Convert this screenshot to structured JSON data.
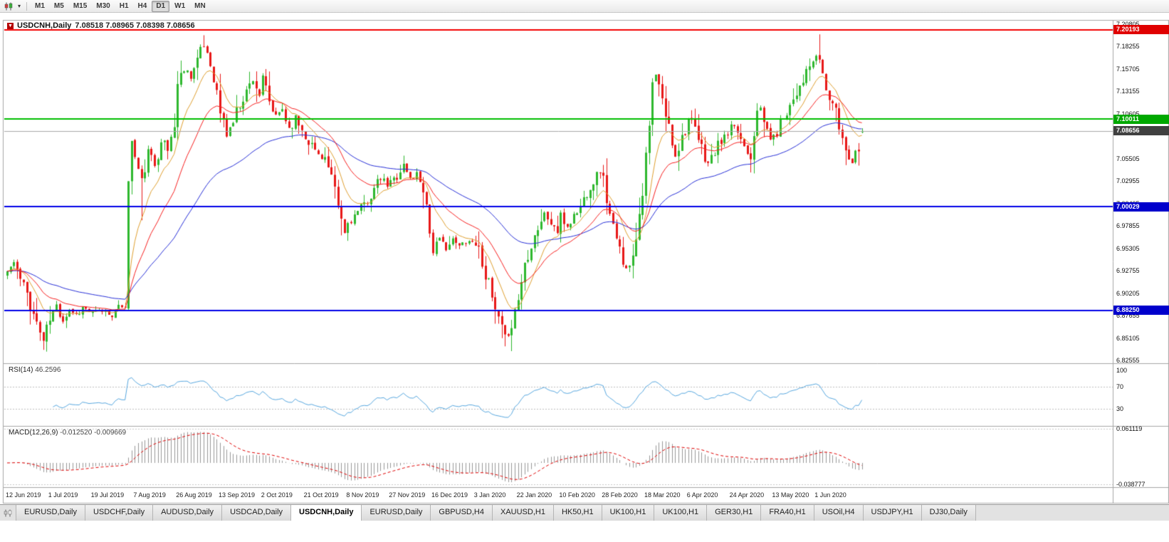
{
  "toolbar": {
    "buttons": [
      {
        "label": "M1",
        "active": false
      },
      {
        "label": "M5",
        "active": false
      },
      {
        "label": "M15",
        "active": false
      },
      {
        "label": "M30",
        "active": false
      },
      {
        "label": "H1",
        "active": false
      },
      {
        "label": "H4",
        "active": false
      },
      {
        "label": "D1",
        "active": true
      },
      {
        "label": "W1",
        "active": false
      },
      {
        "label": "MN",
        "active": false
      }
    ]
  },
  "chart": {
    "symbol": "USDCNH,Daily",
    "ohlc": "7.08518 7.08965 7.08398 7.08656",
    "current_price": {
      "label": "7.08656",
      "value": 7.08656,
      "line_color": "#a8a8a8",
      "badge_bg": "#404040"
    }
  },
  "price_axis": {
    "labels": [
      "7.20805",
      "7.18255",
      "7.15705",
      "7.13155",
      "7.10605",
      "7.08055",
      "7.05505",
      "7.02955",
      "7.00405",
      "6.97855",
      "6.95305",
      "6.92755",
      "6.90205",
      "6.87655",
      "6.85105",
      "6.82555"
    ]
  },
  "hlines": [
    {
      "name": "resistance-line",
      "price": 7.20193,
      "label": "7.20193",
      "color": "#f40000",
      "badge_bg": "#e00000",
      "width": 2
    },
    {
      "name": "pivot-line",
      "price": 7.10011,
      "label": "7.10011",
      "color": "#00be00",
      "badge_bg": "#00a800",
      "width": 2
    },
    {
      "name": "support-line-1",
      "price": 7.00029,
      "label": "7.00029",
      "color": "#0000e8",
      "badge_bg": "#0000cc",
      "width": 2
    },
    {
      "name": "support-line-2",
      "price": 6.8825,
      "label": "6.88250",
      "color": "#0000e8",
      "badge_bg": "#0000cc",
      "width": 2
    }
  ],
  "rsi_panel": {
    "label": "RSI(14)",
    "value": "46.2596",
    "line_color": "#58a8e0",
    "scale_min": 0,
    "scale_max": 112,
    "levels": [
      {
        "label": "100",
        "value": 100
      },
      {
        "label": "70",
        "value": 70
      },
      {
        "label": "30",
        "value": 30
      }
    ]
  },
  "macd_panel": {
    "label": "MACD(12,26,9)",
    "values": "-0.012520 -0.009669",
    "hist_color": "#989898",
    "signal_color": "#e00000",
    "range_max": 0.0655,
    "range_min": -0.0425,
    "scale_labels": [
      {
        "label": "0.061119",
        "value": 0.061119
      },
      {
        "label": "-0.038777",
        "value": -0.038777
      }
    ]
  },
  "date_axis": {
    "labels": [
      "12 Jun 2019",
      "1 Jul 2019",
      "19 Jul 2019",
      "7 Aug 2019",
      "26 Aug 2019",
      "13 Sep 2019",
      "2 Oct 2019",
      "21 Oct 2019",
      "8 Nov 2019",
      "27 Nov 2019",
      "16 Dec 2019",
      "3 Jan 2020",
      "22 Jan 2020",
      "10 Feb 2020",
      "28 Feb 2020",
      "18 Mar 2020",
      "6 Apr 2020",
      "24 Apr 2020",
      "13 May 2020",
      "1 Jun 2020"
    ],
    "indices": [
      0,
      13,
      26,
      39,
      52,
      65,
      78,
      91,
      104,
      117,
      130,
      143,
      156,
      169,
      182,
      195,
      208,
      221,
      234,
      247
    ]
  },
  "tabs": {
    "items": [
      "EURUSD,Daily",
      "USDCHF,Daily",
      "AUDUSD,Daily",
      "USDCAD,Daily",
      "USDCNH,Daily",
      "EURUSD,Daily",
      "GBPUSD,H4",
      "XAUUSD,H1",
      "HK50,H1",
      "UK100,H1",
      "UK100,H1",
      "GER30,H1",
      "FRA40,H1",
      "USOil,H4",
      "USDJPY,H1",
      "DJ30,Daily"
    ],
    "active_index": 4
  },
  "chart_data": {
    "type": "candlestick",
    "symbol": "USDCNH",
    "timeframe": "Daily",
    "num_candles": 262,
    "seed": 11,
    "price_range": {
      "top": 7.2129,
      "bottom": 6.8231
    },
    "ohlc_current": {
      "open": 7.08518,
      "high": 7.08965,
      "low": 7.08398,
      "close": 7.08656
    },
    "candle_colors": {
      "up": "#2eb82e",
      "down": "#e81717"
    },
    "moving_averages": [
      {
        "name": "ma-fast",
        "period": 10,
        "color": "#e0a030"
      },
      {
        "name": "ma-slow",
        "period": 55,
        "color": "#2830d8"
      },
      {
        "name": "ma-mid",
        "period": 22,
        "color": "#f82020"
      }
    ],
    "rsi": {
      "period": 14
    },
    "macd": {
      "fast": 12,
      "slow": 26,
      "signal": 9
    },
    "close_keypoints": [
      [
        0,
        6.927
      ],
      [
        2,
        6.937
      ],
      [
        4,
        6.917
      ],
      [
        6,
        6.902
      ],
      [
        8,
        6.878
      ],
      [
        10,
        6.858
      ],
      [
        11,
        6.848
      ],
      [
        13,
        6.872
      ],
      [
        15,
        6.888
      ],
      [
        17,
        6.872
      ],
      [
        19,
        6.884
      ],
      [
        21,
        6.878
      ],
      [
        23,
        6.886
      ],
      [
        26,
        6.879
      ],
      [
        29,
        6.882
      ],
      [
        32,
        6.878
      ],
      [
        34,
        6.884
      ],
      [
        36,
        6.892
      ],
      [
        37,
        7.025
      ],
      [
        38,
        7.078
      ],
      [
        39,
        7.056
      ],
      [
        40,
        7.042
      ],
      [
        41,
        7.03
      ],
      [
        43,
        7.062
      ],
      [
        45,
        7.048
      ],
      [
        47,
        7.078
      ],
      [
        49,
        7.064
      ],
      [
        51,
        7.095
      ],
      [
        52,
        7.14
      ],
      [
        54,
        7.158
      ],
      [
        56,
        7.15
      ],
      [
        58,
        7.168
      ],
      [
        60,
        7.183
      ],
      [
        61,
        7.176
      ],
      [
        63,
        7.15
      ],
      [
        65,
        7.108
      ],
      [
        67,
        7.082
      ],
      [
        69,
        7.098
      ],
      [
        71,
        7.118
      ],
      [
        73,
        7.132
      ],
      [
        75,
        7.146
      ],
      [
        77,
        7.128
      ],
      [
        78,
        7.146
      ],
      [
        80,
        7.118
      ],
      [
        82,
        7.102
      ],
      [
        84,
        7.112
      ],
      [
        86,
        7.09
      ],
      [
        88,
        7.102
      ],
      [
        91,
        7.082
      ],
      [
        93,
        7.07
      ],
      [
        95,
        7.06
      ],
      [
        97,
        7.056
      ],
      [
        99,
        7.03
      ],
      [
        101,
        7.0
      ],
      [
        103,
        6.97
      ],
      [
        104,
        6.982
      ],
      [
        106,
        6.99
      ],
      [
        108,
        6.998
      ],
      [
        110,
        7.008
      ],
      [
        112,
        7.02
      ],
      [
        114,
        7.032
      ],
      [
        116,
        7.024
      ],
      [
        117,
        7.028
      ],
      [
        119,
        7.036
      ],
      [
        121,
        7.048
      ],
      [
        123,
        7.032
      ],
      [
        125,
        7.038
      ],
      [
        127,
        7.024
      ],
      [
        128,
        7.002
      ],
      [
        129,
        6.972
      ],
      [
        130,
        6.952
      ],
      [
        132,
        6.962
      ],
      [
        134,
        6.954
      ],
      [
        136,
        6.962
      ],
      [
        138,
        6.955
      ],
      [
        140,
        6.962
      ],
      [
        143,
        6.96
      ],
      [
        145,
        6.94
      ],
      [
        147,
        6.91
      ],
      [
        149,
        6.88
      ],
      [
        151,
        6.86
      ],
      [
        152,
        6.852
      ],
      [
        154,
        6.868
      ],
      [
        156,
        6.896
      ],
      [
        158,
        6.936
      ],
      [
        160,
        6.96
      ],
      [
        162,
        6.977
      ],
      [
        164,
        6.992
      ],
      [
        166,
        6.982
      ],
      [
        168,
        6.972
      ],
      [
        169,
        6.988
      ],
      [
        171,
        6.978
      ],
      [
        173,
        6.99
      ],
      [
        175,
        7.0
      ],
      [
        177,
        7.018
      ],
      [
        179,
        7.03
      ],
      [
        181,
        7.042
      ],
      [
        182,
        7.03
      ],
      [
        184,
        6.99
      ],
      [
        186,
        6.96
      ],
      [
        188,
        6.94
      ],
      [
        190,
        6.93
      ],
      [
        192,
        6.97
      ],
      [
        194,
        7.02
      ],
      [
        196,
        7.09
      ],
      [
        197,
        7.138
      ],
      [
        198,
        7.15
      ],
      [
        200,
        7.12
      ],
      [
        202,
        7.09
      ],
      [
        204,
        7.06
      ],
      [
        206,
        7.08
      ],
      [
        208,
        7.1
      ],
      [
        210,
        7.086
      ],
      [
        212,
        7.066
      ],
      [
        214,
        7.05
      ],
      [
        216,
        7.062
      ],
      [
        218,
        7.076
      ],
      [
        220,
        7.082
      ],
      [
        221,
        7.09
      ],
      [
        223,
        7.086
      ],
      [
        225,
        7.07
      ],
      [
        227,
        7.06
      ],
      [
        229,
        7.116
      ],
      [
        231,
        7.096
      ],
      [
        233,
        7.08
      ],
      [
        234,
        7.078
      ],
      [
        236,
        7.096
      ],
      [
        238,
        7.11
      ],
      [
        240,
        7.124
      ],
      [
        242,
        7.14
      ],
      [
        244,
        7.152
      ],
      [
        246,
        7.166
      ],
      [
        248,
        7.17
      ],
      [
        250,
        7.132
      ],
      [
        252,
        7.118
      ],
      [
        254,
        7.092
      ],
      [
        256,
        7.066
      ],
      [
        258,
        7.052
      ],
      [
        260,
        7.072
      ],
      [
        261,
        7.08656
      ]
    ],
    "wick_overrides": [
      {
        "i": 60,
        "high": 7.1955
      },
      {
        "i": 248,
        "high": 7.1965
      },
      {
        "i": 11,
        "low": 6.8375
      },
      {
        "i": 152,
        "low": 6.8415
      },
      {
        "i": 121,
        "high": 7.0585
      },
      {
        "i": 41,
        "low": 6.985
      }
    ]
  }
}
